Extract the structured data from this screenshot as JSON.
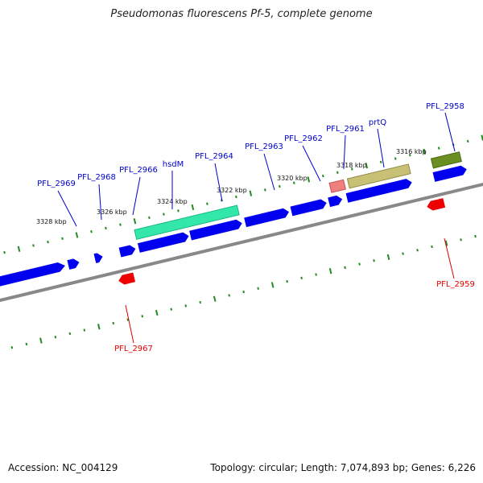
{
  "title": "Pseudomonas fluorescens Pf-5, complete genome",
  "footer": {
    "accession": "Accession: NC_004129",
    "summary": "Topology: circular; Length: 7,074,893 bp; Genes: 6,226"
  },
  "colors": {
    "cds": "#0000ee",
    "reverse_label": "#dd0000",
    "forward_label": "#0000cc",
    "backbone": "#888888",
    "ticks": "#228b22",
    "gene_hsdM": "#33e6aa",
    "gene_prtQ": "#c8c074",
    "gene_PFL_2958": "#6b8e23",
    "gene_PFL_2961": "#f08080"
  },
  "ruler_labels": [
    "3328 kbp",
    "3326 kbp",
    "3324 kbp",
    "3322 kbp",
    "3320 kbp",
    "3318 kbp",
    "3316 kbp"
  ],
  "forward_labels": [
    "PFL_2969",
    "PFL_2968",
    "PFL_2966",
    "hsdM",
    "PFL_2964",
    "PFL_2963",
    "PFL_2962",
    "PFL_2961",
    "prtQ",
    "PFL_2958"
  ],
  "reverse_labels": [
    "PFL_2967",
    "PFL_2959"
  ]
}
